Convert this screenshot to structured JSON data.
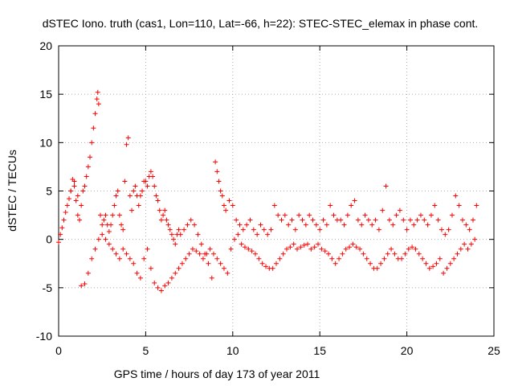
{
  "chart_data": {
    "type": "scatter",
    "title": "dSTEC Iono. truth (cas1, Lon=110, Lat=-66, h=22): STEC-STEC_elemax in phase cont.",
    "xlabel": "GPS time / hours of day 173 of year 2011",
    "ylabel": "dSTEC  / TECUs",
    "xlim": [
      0,
      25
    ],
    "ylim": [
      -10,
      20
    ],
    "x_ticks": [
      0,
      5,
      10,
      15,
      20,
      25
    ],
    "y_ticks": [
      -10,
      -5,
      0,
      5,
      10,
      15,
      20
    ],
    "x_tick_labels": [
      "0",
      "5",
      "10",
      "15",
      "20",
      "25"
    ],
    "y_tick_labels": [
      "-10",
      "-5",
      "0",
      "5",
      "10",
      "15",
      "20"
    ],
    "grid": true,
    "marker": "plus",
    "series": [
      {
        "name": "dSTEC",
        "color": "#ff0000",
        "x": [
          0.0,
          0.1,
          0.2,
          0.3,
          0.4,
          0.5,
          0.6,
          0.7,
          0.8,
          0.9,
          1.0,
          1.1,
          1.2,
          1.3,
          1.4,
          1.5,
          1.6,
          1.7,
          1.8,
          1.9,
          2.0,
          2.1,
          2.2,
          2.25,
          2.3,
          2.4,
          2.5,
          2.6,
          2.7,
          2.8,
          2.9,
          3.0,
          3.1,
          3.2,
          3.3,
          3.4,
          3.5,
          3.6,
          3.7,
          3.8,
          3.9,
          4.0,
          4.1,
          4.2,
          4.3,
          4.4,
          4.5,
          4.6,
          4.7,
          4.8,
          4.9,
          5.0,
          5.1,
          5.2,
          5.3,
          5.4,
          5.5,
          5.6,
          5.7,
          5.8,
          5.9,
          6.0,
          6.1,
          6.2,
          6.3,
          6.4,
          6.5,
          6.6,
          6.7,
          6.8,
          6.9,
          7.0,
          7.2,
          7.4,
          7.6,
          7.8,
          8.0,
          8.2,
          8.4,
          8.6,
          8.8,
          9.0,
          9.1,
          9.2,
          9.3,
          9.4,
          9.5,
          9.6,
          9.8,
          10.0,
          10.2,
          10.4,
          10.6,
          10.8,
          11.0,
          11.2,
          11.4,
          11.6,
          11.8,
          12.0,
          12.2,
          12.4,
          12.6,
          12.8,
          13.0,
          13.2,
          13.4,
          13.6,
          13.8,
          14.0,
          14.2,
          14.4,
          14.6,
          14.8,
          15.0,
          15.2,
          15.4,
          15.6,
          15.8,
          16.0,
          16.2,
          16.4,
          16.6,
          16.8,
          17.0,
          17.2,
          17.4,
          17.6,
          17.8,
          18.0,
          18.2,
          18.4,
          18.6,
          18.8,
          19.0,
          19.2,
          19.4,
          19.6,
          19.8,
          20.0,
          20.2,
          20.4,
          20.6,
          20.8,
          21.0,
          21.2,
          21.4,
          21.6,
          21.8,
          22.0,
          22.2,
          22.4,
          22.6,
          22.8,
          23.0,
          23.2,
          23.4,
          23.6,
          23.8,
          24.0,
          0.7,
          0.9,
          1.1,
          1.3,
          1.5,
          1.7,
          1.9,
          2.1,
          2.3,
          2.5,
          2.7,
          2.9,
          3.1,
          3.3,
          3.5,
          3.7,
          3.9,
          4.1,
          4.3,
          4.5,
          4.7,
          4.9,
          5.1,
          5.3,
          5.5,
          5.7,
          5.9,
          6.1,
          6.3,
          6.5,
          6.7,
          6.9,
          7.1,
          7.3,
          7.5,
          7.7,
          7.9,
          8.1,
          8.3,
          8.5,
          8.7,
          8.9,
          9.1,
          9.3,
          9.5,
          9.7,
          9.9,
          10.1,
          10.3,
          10.5,
          10.7,
          10.9,
          11.1,
          11.3,
          11.5,
          11.7,
          11.9,
          12.1,
          12.3,
          12.5,
          12.7,
          12.9,
          13.1,
          13.3,
          13.5,
          13.7,
          13.9,
          14.1,
          14.3,
          14.5,
          14.7,
          14.9,
          15.1,
          15.3,
          15.5,
          15.7,
          15.9,
          16.1,
          16.3,
          16.5,
          16.7,
          16.9,
          17.1,
          17.3,
          17.5,
          17.7,
          17.9,
          18.1,
          18.3,
          18.5,
          18.7,
          18.9,
          19.1,
          19.3,
          19.5,
          19.7,
          19.9,
          20.1,
          20.3,
          20.5,
          20.7,
          20.9,
          21.1,
          21.3,
          21.5,
          21.7,
          21.9,
          22.1,
          22.3,
          22.5,
          22.7,
          22.9,
          23.1,
          23.3,
          23.5,
          23.7,
          23.9
        ],
        "y": [
          -0.3,
          0.5,
          1.2,
          2.0,
          2.8,
          3.5,
          4.2,
          5.0,
          6.2,
          6.0,
          4.0,
          2.5,
          2.0,
          3.5,
          5.0,
          5.5,
          6.5,
          7.5,
          8.5,
          10.0,
          11.5,
          13.0,
          14.5,
          15.2,
          14.0,
          2.5,
          1.5,
          2.0,
          2.5,
          1.5,
          0.8,
          1.5,
          2.5,
          3.5,
          4.5,
          5.0,
          2.5,
          1.5,
          1.0,
          6.0,
          9.8,
          10.5,
          4.5,
          3.0,
          5.0,
          5.5,
          4.5,
          3.5,
          4.5,
          5.0,
          6.0,
          6.0,
          5.5,
          6.5,
          7.0,
          6.5,
          5.5,
          4.5,
          4.0,
          3.0,
          2.0,
          2.5,
          3.0,
          2.0,
          1.5,
          1.0,
          0.5,
          0.0,
          -0.5,
          0.5,
          1.0,
          0.5,
          1.0,
          1.5,
          2.0,
          1.5,
          0.5,
          -0.5,
          -1.5,
          -2.5,
          -4.0,
          8.0,
          7.0,
          6.0,
          5.0,
          4.5,
          3.5,
          3.0,
          4.0,
          3.5,
          2.0,
          1.5,
          1.0,
          1.5,
          2.0,
          1.0,
          0.5,
          1.5,
          1.0,
          0.5,
          1.0,
          3.5,
          2.5,
          2.0,
          2.5,
          1.5,
          2.0,
          1.0,
          2.5,
          2.0,
          1.5,
          2.5,
          2.0,
          1.5,
          1.0,
          2.0,
          1.5,
          3.5,
          2.5,
          2.0,
          2.0,
          1.5,
          2.5,
          3.5,
          4.0,
          2.0,
          1.5,
          2.5,
          2.0,
          1.5,
          2.0,
          1.0,
          3.0,
          5.5,
          2.0,
          1.5,
          2.5,
          3.0,
          2.0,
          1.0,
          2.0,
          1.5,
          2.0,
          2.5,
          2.0,
          1.5,
          2.5,
          3.5,
          2.0,
          1.0,
          0.5,
          1.0,
          2.5,
          4.5,
          3.5,
          2.0,
          1.5,
          1.0,
          2.0,
          3.5,
          5.0,
          5.5,
          4.5,
          -4.8,
          -4.6,
          -3.5,
          -2.0,
          -1.0,
          0.0,
          0.5,
          0.0,
          -0.5,
          -1.0,
          -1.5,
          -2.0,
          -1.0,
          -1.5,
          -2.0,
          -2.5,
          -3.5,
          -4.0,
          -2.0,
          -1.0,
          -3.0,
          -4.5,
          -5.0,
          -5.3,
          -4.8,
          -4.5,
          -4.0,
          -3.5,
          -3.0,
          -2.5,
          -2.0,
          -1.5,
          -1.0,
          -1.2,
          -1.5,
          -2.0,
          -1.5,
          -1.0,
          -1.5,
          -2.0,
          -2.5,
          -3.0,
          -3.5,
          -1.0,
          0.0,
          0.5,
          -0.5,
          -0.8,
          -1.0,
          -1.2,
          -1.5,
          -2.0,
          -2.5,
          -2.8,
          -3.0,
          -3.0,
          -2.5,
          -2.0,
          -1.5,
          -1.0,
          -0.8,
          -0.5,
          -1.0,
          -0.8,
          -0.6,
          -0.5,
          -1.0,
          -0.8,
          -0.5,
          -1.0,
          -1.2,
          -1.5,
          -2.0,
          -2.5,
          -2.0,
          -1.5,
          -1.0,
          -0.8,
          -0.5,
          -0.8,
          -1.0,
          -1.5,
          -2.0,
          -2.5,
          -3.0,
          -3.0,
          -2.5,
          -2.0,
          -1.5,
          -1.0,
          -1.5,
          -2.0,
          -2.0,
          -1.5,
          -1.0,
          -0.8,
          -1.0,
          -1.5,
          -2.0,
          -2.5,
          -3.0,
          -2.8,
          -2.5,
          -2.0,
          -3.5,
          -3.0,
          -2.5,
          -2.0,
          -1.5,
          -1.0,
          -0.5,
          -1.0,
          -0.5,
          0.0
        ]
      }
    ]
  }
}
